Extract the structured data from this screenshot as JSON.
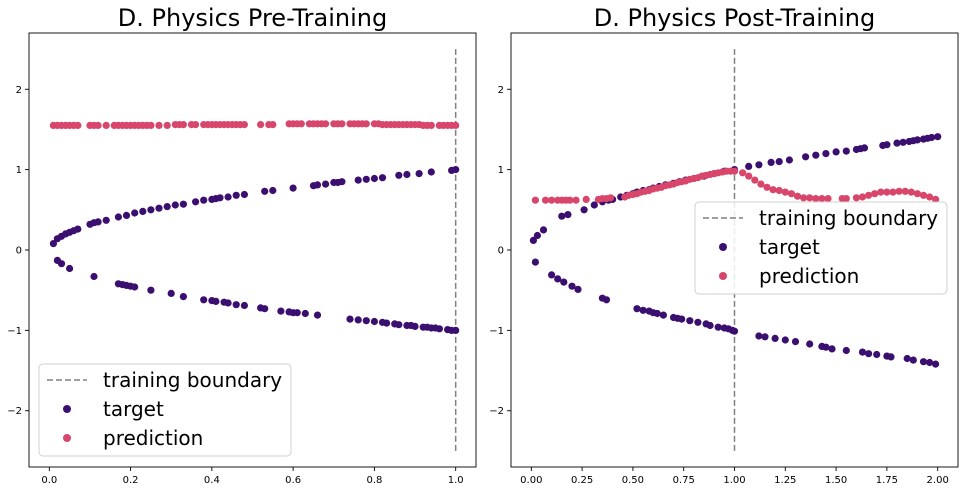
{
  "colors": {
    "target": "#3b0f70",
    "prediction": "#d8466b",
    "boundary": "#808080"
  },
  "chart_data": [
    {
      "type": "scatter",
      "title": "D. Physics Pre-Training",
      "xlim": [
        -0.05,
        1.05
      ],
      "ylim": [
        -2.7,
        2.7
      ],
      "xticks": [
        0.0,
        0.2,
        0.4,
        0.6,
        0.8,
        1.0
      ],
      "xtick_labels": [
        "0.0",
        "0.2",
        "0.4",
        "0.6",
        "0.8",
        "1.0"
      ],
      "yticks": [
        -2,
        -1,
        0,
        1,
        2
      ],
      "ytick_labels": [
        "−2",
        "−1",
        "0",
        "1",
        "2"
      ],
      "grid": false,
      "legend": {
        "location": "lower-left",
        "entries": [
          "training boundary",
          "target",
          "prediction"
        ]
      },
      "boundary": {
        "name": "training boundary",
        "x": 1.0,
        "y_range": [
          -2.5,
          2.5
        ]
      },
      "series": [
        {
          "name": "target",
          "x": [
            0.01,
            0.02,
            0.03,
            0.04,
            0.05,
            0.06,
            0.07,
            0.1,
            0.11,
            0.12,
            0.14,
            0.17,
            0.19,
            0.21,
            0.23,
            0.25,
            0.27,
            0.29,
            0.31,
            0.33,
            0.36,
            0.38,
            0.4,
            0.41,
            0.42,
            0.44,
            0.46,
            0.48,
            0.53,
            0.55,
            0.6,
            0.65,
            0.66,
            0.68,
            0.7,
            0.71,
            0.72,
            0.76,
            0.78,
            0.8,
            0.82,
            0.86,
            0.88,
            0.91,
            0.94,
            0.99,
            1.0,
            0.02,
            0.03,
            0.05,
            0.11,
            0.17,
            0.18,
            0.19,
            0.2,
            0.21,
            0.25,
            0.3,
            0.33,
            0.38,
            0.4,
            0.41,
            0.43,
            0.44,
            0.46,
            0.48,
            0.52,
            0.53,
            0.57,
            0.59,
            0.6,
            0.61,
            0.63,
            0.66,
            0.74,
            0.76,
            0.78,
            0.8,
            0.82,
            0.83,
            0.85,
            0.86,
            0.88,
            0.89,
            0.9,
            0.92,
            0.93,
            0.94,
            0.95,
            0.96,
            0.98,
            0.99,
            1.0
          ],
          "y": [
            0.08,
            0.14,
            0.17,
            0.2,
            0.22,
            0.24,
            0.26,
            0.32,
            0.34,
            0.35,
            0.37,
            0.41,
            0.43,
            0.46,
            0.48,
            0.5,
            0.52,
            0.54,
            0.56,
            0.57,
            0.6,
            0.62,
            0.63,
            0.64,
            0.65,
            0.66,
            0.68,
            0.69,
            0.73,
            0.74,
            0.77,
            0.8,
            0.81,
            0.82,
            0.84,
            0.84,
            0.85,
            0.87,
            0.88,
            0.89,
            0.9,
            0.93,
            0.94,
            0.95,
            0.97,
            0.99,
            1.0,
            -0.13,
            -0.17,
            -0.23,
            -0.33,
            -0.42,
            -0.43,
            -0.44,
            -0.45,
            -0.46,
            -0.5,
            -0.54,
            -0.58,
            -0.62,
            -0.63,
            -0.64,
            -0.65,
            -0.66,
            -0.68,
            -0.69,
            -0.72,
            -0.73,
            -0.76,
            -0.77,
            -0.78,
            -0.78,
            -0.79,
            -0.81,
            -0.86,
            -0.87,
            -0.88,
            -0.89,
            -0.9,
            -0.91,
            -0.92,
            -0.93,
            -0.94,
            -0.94,
            -0.95,
            -0.96,
            -0.96,
            -0.97,
            -0.97,
            -0.98,
            -0.99,
            -1.0,
            -1.0
          ]
        },
        {
          "name": "prediction",
          "x": [
            0.01,
            0.02,
            0.03,
            0.04,
            0.05,
            0.06,
            0.07,
            0.1,
            0.11,
            0.12,
            0.14,
            0.16,
            0.17,
            0.18,
            0.19,
            0.2,
            0.21,
            0.22,
            0.23,
            0.24,
            0.25,
            0.27,
            0.29,
            0.31,
            0.32,
            0.33,
            0.35,
            0.36,
            0.38,
            0.39,
            0.4,
            0.41,
            0.42,
            0.43,
            0.44,
            0.45,
            0.46,
            0.47,
            0.48,
            0.52,
            0.54,
            0.55,
            0.59,
            0.6,
            0.61,
            0.62,
            0.64,
            0.65,
            0.66,
            0.67,
            0.68,
            0.7,
            0.71,
            0.72,
            0.74,
            0.75,
            0.76,
            0.77,
            0.78,
            0.8,
            0.81,
            0.82,
            0.83,
            0.84,
            0.85,
            0.86,
            0.87,
            0.88,
            0.89,
            0.9,
            0.91,
            0.92,
            0.93,
            0.94,
            0.96,
            0.97,
            0.98,
            0.99,
            1.0
          ],
          "y": [
            1.55,
            1.55,
            1.55,
            1.55,
            1.55,
            1.55,
            1.55,
            1.55,
            1.55,
            1.55,
            1.55,
            1.55,
            1.55,
            1.55,
            1.55,
            1.55,
            1.55,
            1.55,
            1.55,
            1.55,
            1.55,
            1.55,
            1.55,
            1.56,
            1.56,
            1.56,
            1.56,
            1.56,
            1.56,
            1.56,
            1.56,
            1.56,
            1.56,
            1.56,
            1.56,
            1.56,
            1.56,
            1.56,
            1.56,
            1.56,
            1.56,
            1.56,
            1.57,
            1.57,
            1.57,
            1.57,
            1.57,
            1.57,
            1.57,
            1.57,
            1.57,
            1.57,
            1.57,
            1.57,
            1.57,
            1.57,
            1.57,
            1.57,
            1.57,
            1.57,
            1.57,
            1.56,
            1.56,
            1.56,
            1.56,
            1.56,
            1.56,
            1.56,
            1.56,
            1.56,
            1.56,
            1.55,
            1.55,
            1.55,
            1.55,
            1.55,
            1.55,
            1.55,
            1.55
          ]
        }
      ]
    },
    {
      "type": "scatter",
      "title": "D. Physics Post-Training",
      "xlim": [
        -0.1,
        2.1
      ],
      "ylim": [
        -2.7,
        2.7
      ],
      "xticks": [
        0.0,
        0.25,
        0.5,
        0.75,
        1.0,
        1.25,
        1.5,
        1.75,
        2.0
      ],
      "xtick_labels": [
        "0.00",
        "0.25",
        "0.50",
        "0.75",
        "1.00",
        "1.25",
        "1.50",
        "1.75",
        "2.00"
      ],
      "yticks": [
        -2,
        -1,
        0,
        1,
        2
      ],
      "ytick_labels": [
        "−2",
        "−1",
        "0",
        "1",
        "2"
      ],
      "grid": false,
      "legend": {
        "location": "center-right",
        "entries": [
          "training boundary",
          "target",
          "prediction"
        ]
      },
      "boundary": {
        "name": "training boundary",
        "x": 1.0,
        "y_range": [
          -2.5,
          2.5
        ]
      },
      "series": [
        {
          "name": "target",
          "x": [
            0.01,
            0.03,
            0.06,
            0.15,
            0.18,
            0.26,
            0.31,
            0.35,
            0.38,
            0.4,
            0.44,
            0.47,
            0.5,
            0.52,
            0.55,
            0.58,
            0.6,
            0.63,
            0.66,
            0.7,
            0.73,
            0.76,
            0.8,
            0.85,
            0.9,
            0.95,
            1.0,
            1.07,
            1.12,
            1.18,
            1.22,
            1.27,
            1.35,
            1.4,
            1.45,
            1.5,
            1.55,
            1.6,
            1.62,
            1.64,
            1.73,
            1.75,
            1.8,
            1.83,
            1.86,
            1.88,
            1.9,
            1.93,
            1.95,
            1.97,
            2.0,
            0.02,
            0.1,
            0.13,
            0.16,
            0.2,
            0.23,
            0.35,
            0.37,
            0.52,
            0.55,
            0.58,
            0.6,
            0.62,
            0.65,
            0.7,
            0.72,
            0.74,
            0.78,
            0.82,
            0.86,
            0.88,
            0.92,
            0.95,
            0.97,
            0.99,
            1.0,
            1.12,
            1.15,
            1.2,
            1.25,
            1.3,
            1.37,
            1.43,
            1.45,
            1.48,
            1.55,
            1.63,
            1.66,
            1.7,
            1.75,
            1.77,
            1.85,
            1.88,
            1.93,
            1.96,
            1.99
          ],
          "y": [
            0.12,
            0.18,
            0.25,
            0.42,
            0.44,
            0.5,
            0.56,
            0.6,
            0.62,
            0.63,
            0.66,
            0.68,
            0.7,
            0.72,
            0.74,
            0.75,
            0.77,
            0.79,
            0.81,
            0.83,
            0.85,
            0.87,
            0.89,
            0.92,
            0.95,
            0.98,
            1.0,
            1.04,
            1.06,
            1.09,
            1.1,
            1.12,
            1.16,
            1.18,
            1.2,
            1.22,
            1.23,
            1.25,
            1.26,
            1.27,
            1.3,
            1.31,
            1.33,
            1.34,
            1.35,
            1.36,
            1.37,
            1.38,
            1.39,
            1.4,
            1.41,
            -0.15,
            -0.31,
            -0.36,
            -0.4,
            -0.45,
            -0.49,
            -0.6,
            -0.62,
            -0.73,
            -0.75,
            -0.76,
            -0.78,
            -0.79,
            -0.81,
            -0.84,
            -0.85,
            -0.86,
            -0.88,
            -0.9,
            -0.92,
            -0.94,
            -0.96,
            -0.97,
            -0.98,
            -1.0,
            -1.01,
            -1.07,
            -1.08,
            -1.1,
            -1.12,
            -1.14,
            -1.17,
            -1.2,
            -1.21,
            -1.23,
            -1.25,
            -1.27,
            -1.29,
            -1.3,
            -1.32,
            -1.33,
            -1.35,
            -1.37,
            -1.39,
            -1.4,
            -1.42
          ]
        },
        {
          "name": "prediction",
          "x": [
            0.02,
            0.07,
            0.1,
            0.13,
            0.15,
            0.17,
            0.19,
            0.22,
            0.27,
            0.33,
            0.35,
            0.37,
            0.39,
            0.46,
            0.48,
            0.5,
            0.52,
            0.54,
            0.56,
            0.58,
            0.6,
            0.62,
            0.64,
            0.66,
            0.68,
            0.7,
            0.72,
            0.74,
            0.76,
            0.78,
            0.8,
            0.82,
            0.84,
            0.86,
            0.88,
            0.9,
            0.92,
            0.94,
            0.96,
            0.98,
            1.0,
            1.04,
            1.07,
            1.1,
            1.13,
            1.16,
            1.19,
            1.22,
            1.25,
            1.28,
            1.31,
            1.34,
            1.37,
            1.4,
            1.43,
            1.46,
            1.53,
            1.55,
            1.6,
            1.63,
            1.66,
            1.69,
            1.72,
            1.75,
            1.78,
            1.81,
            1.84,
            1.87,
            1.9,
            1.93,
            1.96,
            1.99
          ],
          "y": [
            0.62,
            0.62,
            0.62,
            0.62,
            0.62,
            0.62,
            0.62,
            0.62,
            0.63,
            0.63,
            0.64,
            0.64,
            0.65,
            0.66,
            0.68,
            0.69,
            0.7,
            0.72,
            0.73,
            0.74,
            0.76,
            0.77,
            0.78,
            0.8,
            0.81,
            0.82,
            0.84,
            0.85,
            0.86,
            0.88,
            0.89,
            0.9,
            0.92,
            0.93,
            0.94,
            0.95,
            0.96,
            0.97,
            0.98,
            0.98,
            0.98,
            0.96,
            0.92,
            0.87,
            0.82,
            0.78,
            0.75,
            0.74,
            0.72,
            0.7,
            0.67,
            0.65,
            0.65,
            0.64,
            0.64,
            0.64,
            0.64,
            0.64,
            0.65,
            0.66,
            0.68,
            0.7,
            0.72,
            0.72,
            0.72,
            0.73,
            0.73,
            0.72,
            0.7,
            0.68,
            0.66,
            0.63
          ]
        }
      ]
    }
  ]
}
